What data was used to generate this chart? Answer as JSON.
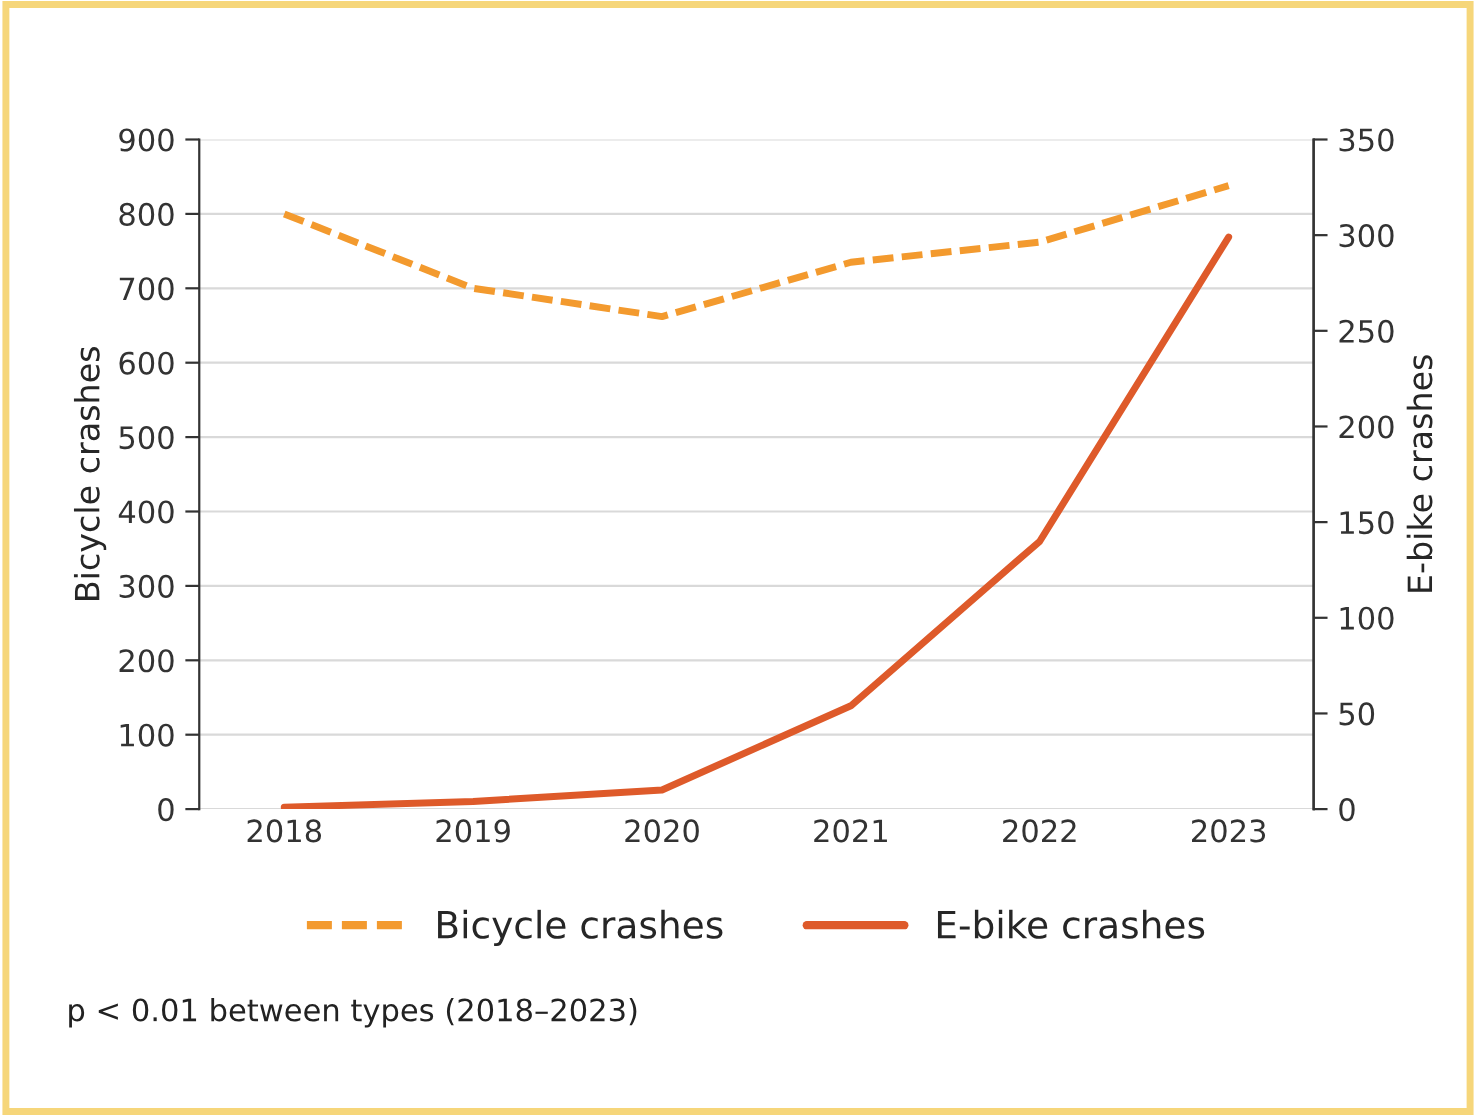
{
  "chart_data": {
    "type": "line",
    "categories": [
      "2018",
      "2019",
      "2020",
      "2021",
      "2022",
      "2023"
    ],
    "ylabel": "Bicycle crashes",
    "y2label": "E-bike crashes",
    "series": [
      {
        "name": "Bicycle crashes",
        "color": "#f39a2e",
        "line_style": "dashed",
        "values": [
          800,
          700,
          662,
          735,
          762,
          838
        ]
      },
      {
        "name": "E-bike crashes",
        "color": "#de5a2a",
        "line_style": "solid",
        "axis": "y2",
        "values": [
          1,
          4,
          10,
          54,
          140,
          299
        ]
      }
    ],
    "ylim": [
      0,
      900
    ],
    "yticks": [
      0,
      100,
      200,
      300,
      400,
      500,
      600,
      700,
      800,
      900
    ],
    "y2lim": [
      0,
      350
    ],
    "y2ticks": [
      0,
      50,
      100,
      150,
      200,
      250,
      300,
      350
    ],
    "grid": "y",
    "legend": "bottom",
    "marker": "none",
    "annotations": [
      "p < 0.01 between types (2018–2023)"
    ]
  }
}
